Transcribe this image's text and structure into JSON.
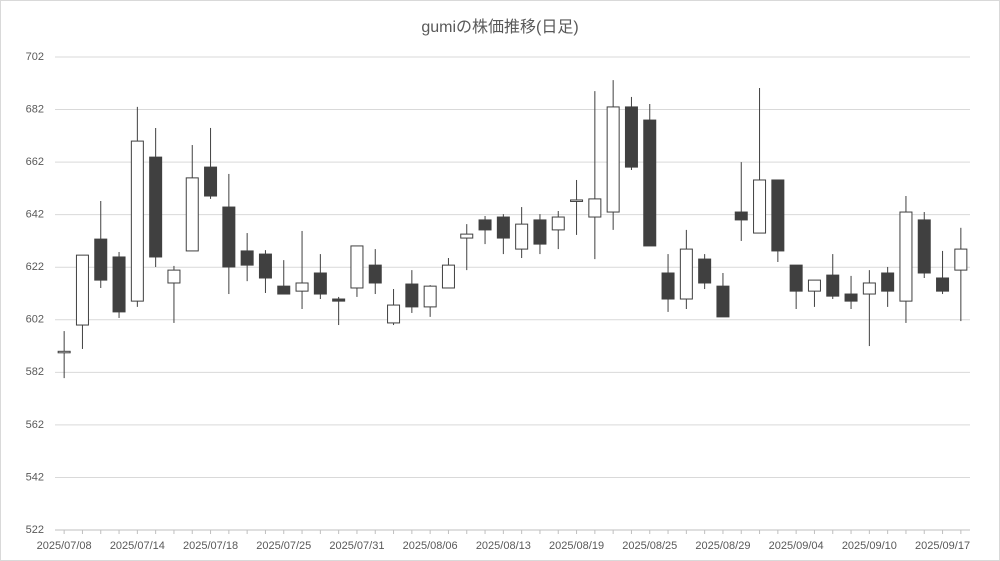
{
  "chart_data": {
    "type": "candlestick",
    "title": "gumiの株価推移(日足)",
    "categories": [
      "2025/07/08",
      null,
      null,
      null,
      "2025/07/14",
      null,
      null,
      null,
      "2025/07/18",
      null,
      null,
      null,
      "2025/07/25",
      null,
      null,
      null,
      "2025/07/31",
      null,
      null,
      null,
      "2025/08/06",
      null,
      null,
      null,
      "2025/08/13",
      null,
      null,
      null,
      "2025/08/19",
      null,
      null,
      null,
      "2025/08/25",
      null,
      null,
      null,
      "2025/08/29",
      null,
      null,
      null,
      "2025/09/04",
      null,
      null,
      null,
      "2025/09/10",
      null,
      null,
      null,
      "2025/09/17",
      null
    ],
    "open": [
      589.5,
      600,
      632.7,
      625.9,
      609.1,
      663.9,
      616,
      628.2,
      660.1,
      644.9,
      628.2,
      627,
      614.8,
      612.9,
      619.8,
      609.9,
      614.1,
      622.8,
      600.8,
      615.6,
      606.9,
      614.1,
      633.1,
      640,
      641.1,
      628.9,
      640,
      636.2,
      647.3,
      641.1,
      643,
      683,
      678,
      619.8,
      609.9,
      625.1,
      614.8,
      643,
      635,
      655.2,
      622.8,
      612.9,
      619,
      611.8,
      611.8,
      619.8,
      609.1,
      640,
      617.9,
      620.9
    ],
    "high": [
      597.7,
      626.6,
      647.2,
      627.8,
      683,
      675,
      622.5,
      668.5,
      675,
      657.5,
      635,
      628.5,
      624.7,
      635.8,
      627,
      610.7,
      630.1,
      628.9,
      613.7,
      620.9,
      615.2,
      625.5,
      638.4,
      641.5,
      642.2,
      644.9,
      642.2,
      643.4,
      655.2,
      689,
      693.2,
      686.8,
      684.1,
      627,
      636.2,
      627,
      619.8,
      662,
      690.2,
      655.2,
      622.8,
      617.1,
      627,
      618.7,
      620.9,
      622.1,
      649.1,
      643,
      628.2,
      637
    ],
    "low": [
      579.8,
      590.9,
      614.1,
      602.7,
      606.9,
      622.1,
      600.8,
      628.2,
      648,
      611.8,
      616.7,
      612.2,
      611.8,
      606.1,
      609.9,
      600,
      610.7,
      611.8,
      600,
      604.6,
      603.1,
      614.1,
      620.9,
      630.8,
      627,
      625.5,
      627,
      628.9,
      634.3,
      625.1,
      636.2,
      659,
      630.1,
      605,
      606.1,
      613.7,
      603.1,
      632,
      635,
      624,
      606.1,
      606.9,
      609.9,
      606.1,
      592,
      606.9,
      600.8,
      617.9,
      611.8,
      601.5
    ],
    "close": [
      590,
      626.6,
      617.1,
      605,
      670,
      625.9,
      620.9,
      656,
      649.1,
      622.1,
      622.8,
      617.9,
      611.8,
      616,
      611.8,
      609.1,
      630.1,
      616,
      607.6,
      606.9,
      614.8,
      622.8,
      634.6,
      636.2,
      633.1,
      638.4,
      630.8,
      641.1,
      647.6,
      648,
      683,
      660.1,
      630.1,
      609.9,
      628.9,
      616,
      603.1,
      640,
      655.2,
      628.2,
      612.9,
      617.1,
      611,
      609.1,
      616,
      612.9,
      643,
      619.8,
      612.9,
      628.9
    ],
    "up_color": "#ffffff",
    "down_color": "#404040",
    "ylim": [
      522,
      702
    ],
    "yticks": [
      522,
      542,
      562,
      582,
      602,
      622,
      642,
      662,
      682,
      702
    ],
    "grid": true
  }
}
